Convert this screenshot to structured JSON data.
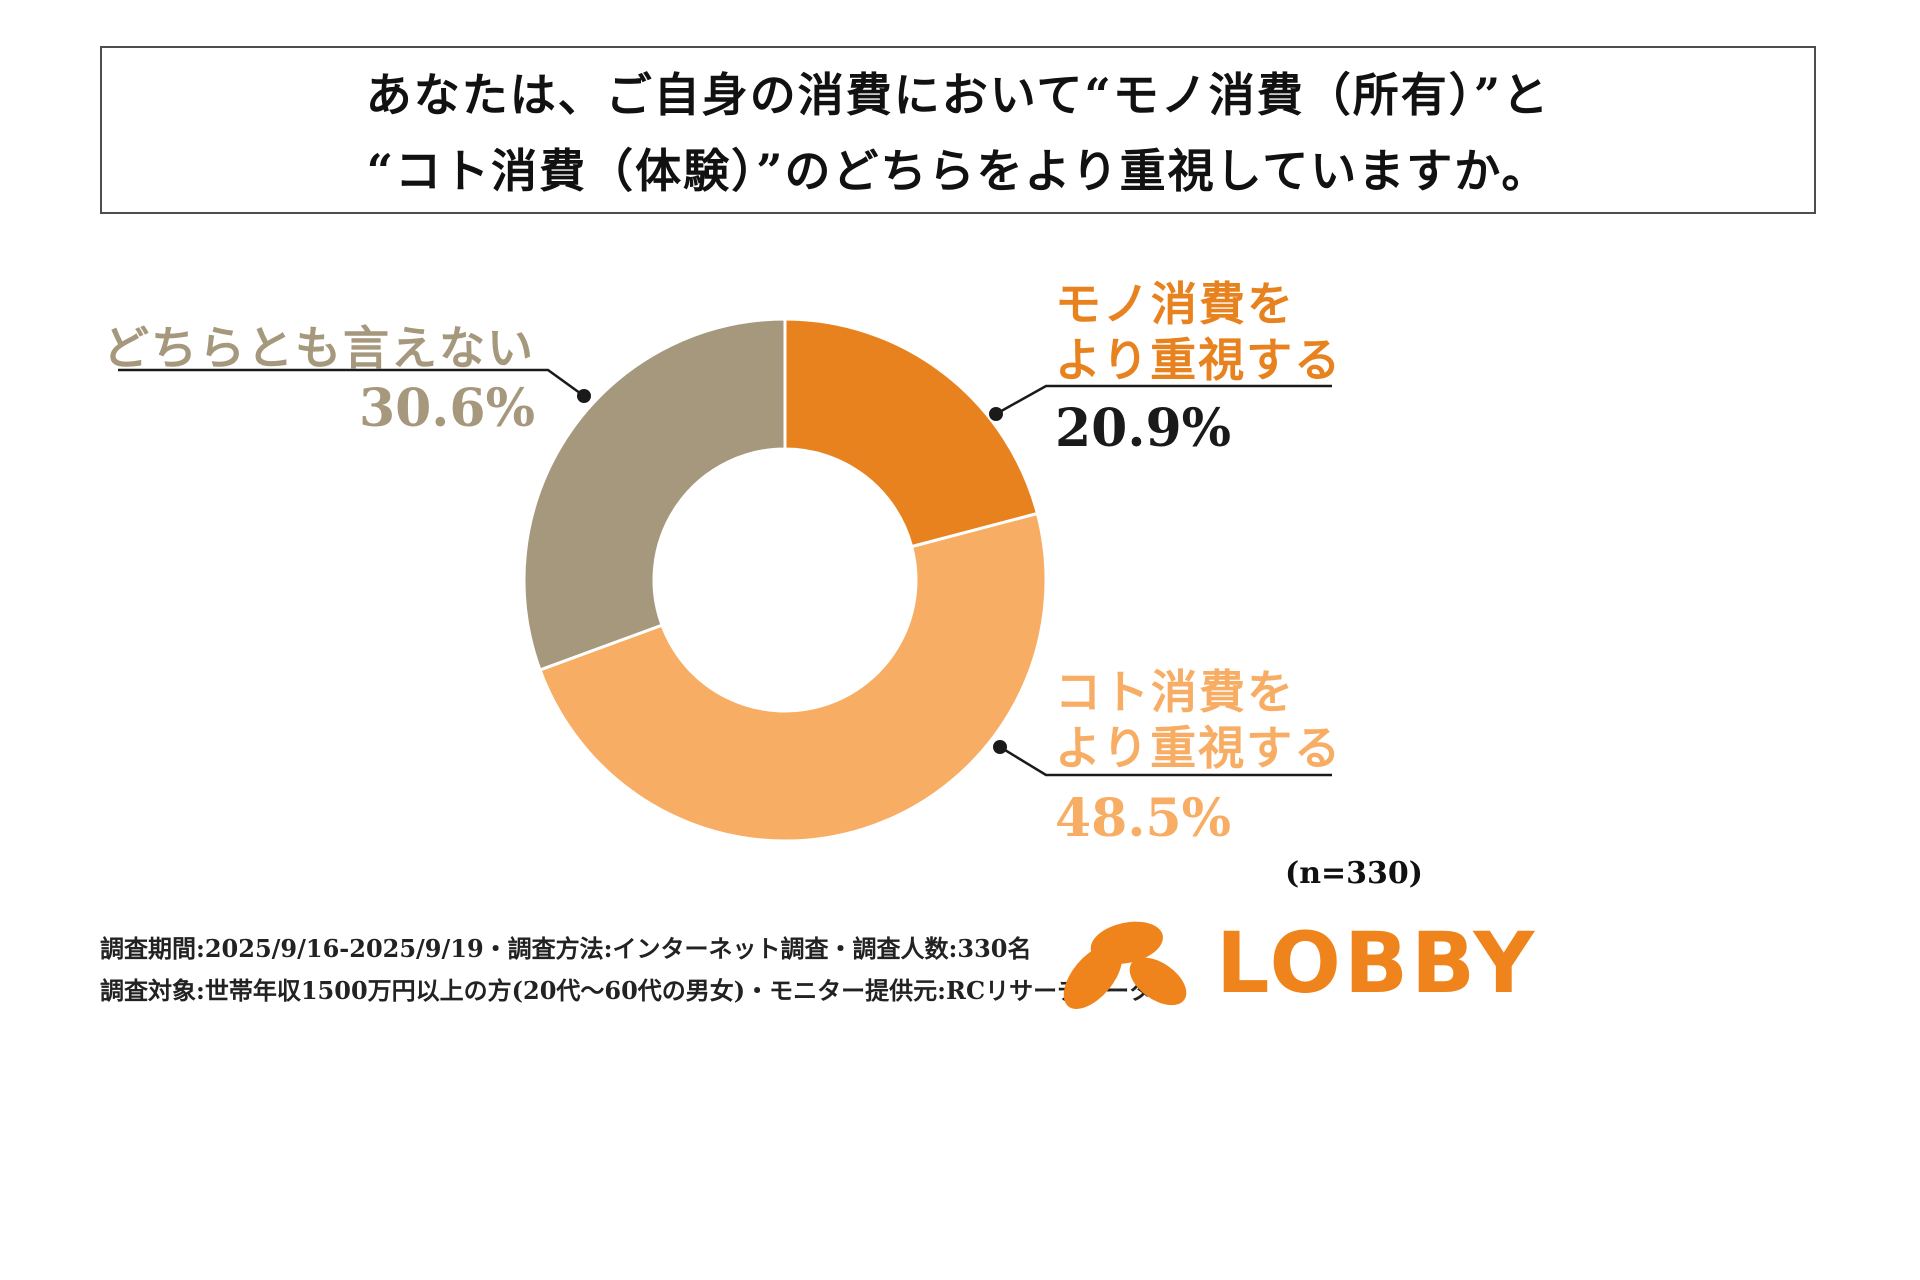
{
  "header": {
    "line1": "あなたは、ご自身の消費において“モノ消費（所有）”と",
    "line2": "“コト消費（体験）”のどちらをより重視していますか。"
  },
  "chart_data": {
    "type": "pie",
    "subtype": "donut",
    "title": "あなたは、ご自身の消費において“モノ消費（所有）”と“コト消費（体験）”のどちらをより重視していますか。",
    "n": 330,
    "start_angle_deg": 0,
    "direction": "clockwise",
    "inner_radius_ratio": 0.5,
    "segments": [
      {
        "label": "モノ消費をより重視する",
        "value": 20.9,
        "display": "20.9%",
        "color": "#E8821E"
      },
      {
        "label": "コト消費をより重視する",
        "value": 48.5,
        "display": "48.5%",
        "color": "#F8AD64"
      },
      {
        "label": "どちらとも言えない",
        "value": 30.6,
        "display": "30.6%",
        "color": "#A6987D"
      }
    ]
  },
  "callouts": {
    "mono": {
      "line1": "モノ消費を",
      "line2": "より重視する",
      "pct": "20.9%"
    },
    "koto": {
      "line1": "コト消費を",
      "line2": "より重視する",
      "pct": "48.5%"
    },
    "neutral": {
      "label": "どちらとも言えない",
      "pct": "30.6%"
    }
  },
  "sample_note": "(n=330)",
  "footer": {
    "line1": "調査期間:2025/9/16-2025/9/19・調査方法:インターネット調査・調査人数:330名",
    "line2": "調査対象:世帯年収1500万円以上の方(20代〜60代の男女)・モニター提供元:RCリサーチデータ"
  },
  "logo": {
    "text": "LOBBY",
    "color": "#F0841C"
  }
}
